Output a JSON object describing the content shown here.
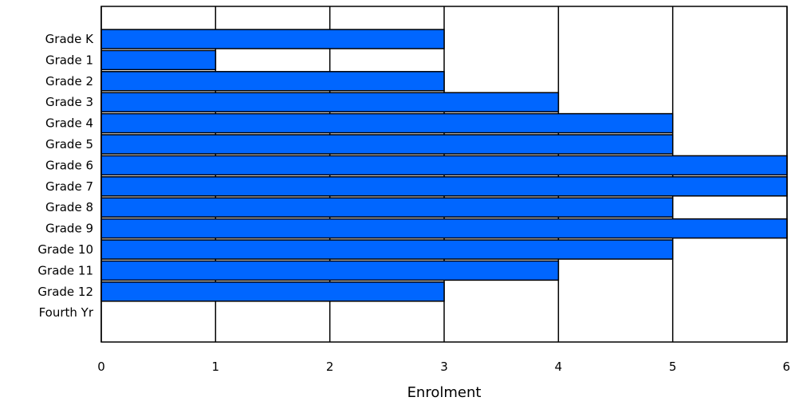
{
  "chart_data": {
    "type": "bar",
    "orientation": "horizontal",
    "categories": [
      "Grade K",
      "Grade 1",
      "Grade 2",
      "Grade 3",
      "Grade 4",
      "Grade 5",
      "Grade 6",
      "Grade 7",
      "Grade 8",
      "Grade 9",
      "Grade 10",
      "Grade 11",
      "Grade 12",
      "Fourth Yr"
    ],
    "values": [
      3,
      1,
      3,
      4,
      5,
      5,
      6,
      6,
      5,
      6,
      5,
      4,
      3,
      0
    ],
    "title": "",
    "xlabel": "Enrolment",
    "ylabel": "",
    "xlim": [
      0,
      6
    ],
    "xticks": [
      "0",
      "1",
      "2",
      "3",
      "4",
      "5",
      "6"
    ],
    "grid": "vertical",
    "legend": "none",
    "bar_color": "#0066ff",
    "bar_edge_color": "#000000",
    "grid_color": "#000000"
  }
}
